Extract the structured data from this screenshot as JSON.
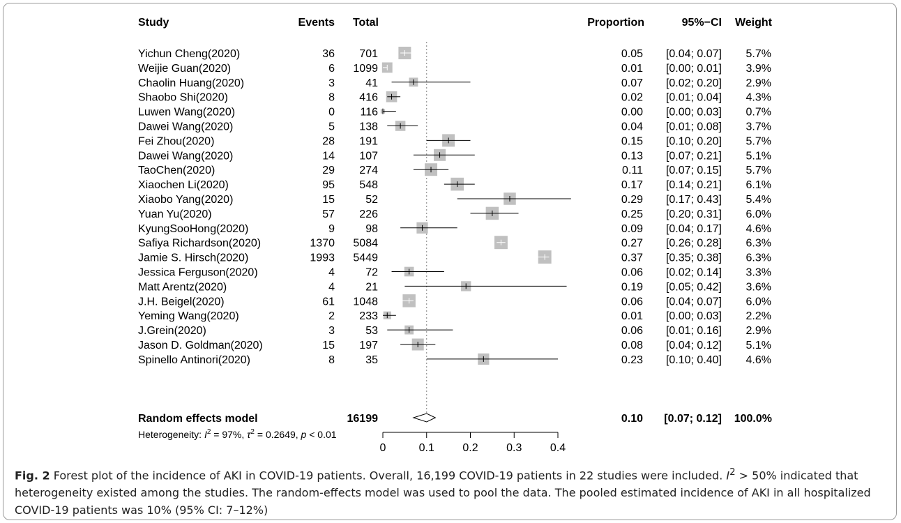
{
  "chart_data": {
    "type": "forest",
    "columns": {
      "study": "Study",
      "events": "Events",
      "total": "Total",
      "proportion": "Proportion",
      "ci": "95%−CI",
      "weight": "Weight"
    },
    "studies": [
      {
        "study": "Yichun Cheng(2020)",
        "events": "36",
        "total": "701",
        "proportion": 0.05,
        "lower": 0.04,
        "upper": 0.07,
        "weight": 5.7,
        "prop_text": "0.05",
        "ci_text": "[0.04; 0.07]",
        "weight_text": "5.7%"
      },
      {
        "study": "Weijie Guan(2020)",
        "events": "6",
        "total": "1099",
        "proportion": 0.01,
        "lower": 0.0,
        "upper": 0.01,
        "weight": 3.9,
        "prop_text": "0.01",
        "ci_text": "[0.00; 0.01]",
        "weight_text": "3.9%"
      },
      {
        "study": "Chaolin Huang(2020)",
        "events": "3",
        "total": "41",
        "proportion": 0.07,
        "lower": 0.02,
        "upper": 0.2,
        "weight": 2.9,
        "prop_text": "0.07",
        "ci_text": "[0.02; 0.20]",
        "weight_text": "2.9%"
      },
      {
        "study": "Shaobo Shi(2020)",
        "events": "8",
        "total": "416",
        "proportion": 0.02,
        "lower": 0.01,
        "upper": 0.04,
        "weight": 4.3,
        "prop_text": "0.02",
        "ci_text": "[0.01; 0.04]",
        "weight_text": "4.3%"
      },
      {
        "study": "Luwen Wang(2020)",
        "events": "0",
        "total": "116",
        "proportion": 0.0,
        "lower": 0.0,
        "upper": 0.03,
        "weight": 0.7,
        "prop_text": "0.00",
        "ci_text": "[0.00; 0.03]",
        "weight_text": "0.7%"
      },
      {
        "study": "Dawei Wang(2020)",
        "events": "5",
        "total": "138",
        "proportion": 0.04,
        "lower": 0.01,
        "upper": 0.08,
        "weight": 3.7,
        "prop_text": "0.04",
        "ci_text": "[0.01; 0.08]",
        "weight_text": "3.7%"
      },
      {
        "study": "Fei Zhou(2020)",
        "events": "28",
        "total": "191",
        "proportion": 0.15,
        "lower": 0.1,
        "upper": 0.2,
        "weight": 5.7,
        "prop_text": "0.15",
        "ci_text": "[0.10; 0.20]",
        "weight_text": "5.7%"
      },
      {
        "study": "Dawei Wang(2020)",
        "events": "14",
        "total": "107",
        "proportion": 0.13,
        "lower": 0.07,
        "upper": 0.21,
        "weight": 5.1,
        "prop_text": "0.13",
        "ci_text": "[0.07; 0.21]",
        "weight_text": "5.1%"
      },
      {
        "study": "TaoChen(2020)",
        "events": "29",
        "total": "274",
        "proportion": 0.11,
        "lower": 0.07,
        "upper": 0.15,
        "weight": 5.7,
        "prop_text": "0.11",
        "ci_text": "[0.07; 0.15]",
        "weight_text": "5.7%"
      },
      {
        "study": "Xiaochen Li(2020)",
        "events": "95",
        "total": "548",
        "proportion": 0.17,
        "lower": 0.14,
        "upper": 0.21,
        "weight": 6.1,
        "prop_text": "0.17",
        "ci_text": "[0.14; 0.21]",
        "weight_text": "6.1%"
      },
      {
        "study": "Xiaobo Yang(2020)",
        "events": "15",
        "total": "52",
        "proportion": 0.29,
        "lower": 0.17,
        "upper": 0.43,
        "weight": 5.4,
        "prop_text": "0.29",
        "ci_text": "[0.17; 0.43]",
        "weight_text": "5.4%"
      },
      {
        "study": "Yuan Yu(2020)",
        "events": "57",
        "total": "226",
        "proportion": 0.25,
        "lower": 0.2,
        "upper": 0.31,
        "weight": 6.0,
        "prop_text": "0.25",
        "ci_text": "[0.20; 0.31]",
        "weight_text": "6.0%"
      },
      {
        "study": "KyungSooHong(2020)",
        "events": "9",
        "total": "98",
        "proportion": 0.09,
        "lower": 0.04,
        "upper": 0.17,
        "weight": 4.6,
        "prop_text": "0.09",
        "ci_text": "[0.04; 0.17]",
        "weight_text": "4.6%"
      },
      {
        "study": "Safiya Richardson(2020)",
        "events": "1370",
        "total": "5084",
        "proportion": 0.27,
        "lower": 0.26,
        "upper": 0.28,
        "weight": 6.3,
        "prop_text": "0.27",
        "ci_text": "[0.26; 0.28]",
        "weight_text": "6.3%"
      },
      {
        "study": "Jamie S. Hirsch(2020)",
        "events": "1993",
        "total": "5449",
        "proportion": 0.37,
        "lower": 0.35,
        "upper": 0.38,
        "weight": 6.3,
        "prop_text": "0.37",
        "ci_text": "[0.35; 0.38]",
        "weight_text": "6.3%"
      },
      {
        "study": "Jessica Ferguson(2020)",
        "events": "4",
        "total": "72",
        "proportion": 0.06,
        "lower": 0.02,
        "upper": 0.14,
        "weight": 3.3,
        "prop_text": "0.06",
        "ci_text": "[0.02; 0.14]",
        "weight_text": "3.3%"
      },
      {
        "study": "Matt Arentz(2020)",
        "events": "4",
        "total": "21",
        "proportion": 0.19,
        "lower": 0.05,
        "upper": 0.42,
        "weight": 3.6,
        "prop_text": "0.19",
        "ci_text": "[0.05; 0.42]",
        "weight_text": "3.6%"
      },
      {
        "study": "J.H. Beigel(2020)",
        "events": "61",
        "total": "1048",
        "proportion": 0.06,
        "lower": 0.04,
        "upper": 0.07,
        "weight": 6.0,
        "prop_text": "0.06",
        "ci_text": "[0.04; 0.07]",
        "weight_text": "6.0%"
      },
      {
        "study": "Yeming Wang(2020)",
        "events": "2",
        "total": "233",
        "proportion": 0.01,
        "lower": 0.0,
        "upper": 0.03,
        "weight": 2.2,
        "prop_text": "0.01",
        "ci_text": "[0.00; 0.03]",
        "weight_text": "2.2%"
      },
      {
        "study": "J.Grein(2020)",
        "events": "3",
        "total": "53",
        "proportion": 0.06,
        "lower": 0.01,
        "upper": 0.16,
        "weight": 2.9,
        "prop_text": "0.06",
        "ci_text": "[0.01; 0.16]",
        "weight_text": "2.9%"
      },
      {
        "study": "Jason D. Goldman(2020)",
        "events": "15",
        "total": "197",
        "proportion": 0.08,
        "lower": 0.04,
        "upper": 0.12,
        "weight": 5.1,
        "prop_text": "0.08",
        "ci_text": "[0.04; 0.12]",
        "weight_text": "5.1%"
      },
      {
        "study": "Spinello Antinori(2020)",
        "events": "8",
        "total": "35",
        "proportion": 0.23,
        "lower": 0.1,
        "upper": 0.4,
        "weight": 4.6,
        "prop_text": "0.23",
        "ci_text": "[0.10; 0.40]",
        "weight_text": "4.6%"
      }
    ],
    "pooled": {
      "label": "Random effects model",
      "total": "16199",
      "proportion": 0.1,
      "lower": 0.07,
      "upper": 0.12,
      "prop_text": "0.10",
      "ci_text": "[0.07; 0.12]",
      "weight_text": "100.0%"
    },
    "heterogeneity": {
      "prefix": "Heterogeneity: ",
      "i2_symbol": "I",
      "i2_value": " = 97%, ",
      "tau2_symbol": "τ",
      "tau2_value": " = 0.2649, ",
      "p_symbol": "p",
      "p_value": " < 0.01"
    },
    "x_ticks": [
      0,
      0.1,
      0.2,
      0.3,
      0.4
    ],
    "x_tick_labels": [
      "0",
      "0.1",
      "0.2",
      "0.3",
      "0.4"
    ],
    "xlim": [
      0,
      0.43
    ],
    "reference_line": 0.1,
    "colors": {
      "box": "#c0c0c0",
      "line": "#000000",
      "ref_line": "#808080",
      "text": "#000000",
      "caption": "#222222"
    }
  },
  "caption": {
    "label": "Fig. 2",
    "text_1": " Forest plot of the incidence of AKI in COVID-19 patients. Overall, 16,199 COVID-19 patients in 22 studies were included. ",
    "i2_symbol": "I",
    "text_2": " > 50% indicated that heterogeneity existed among the studies. The random-effects model was used to pool the data. The pooled estimated incidence of AKI in all hospitalized COVID-19 patients was 10% (95% CI: 7–12%)"
  }
}
